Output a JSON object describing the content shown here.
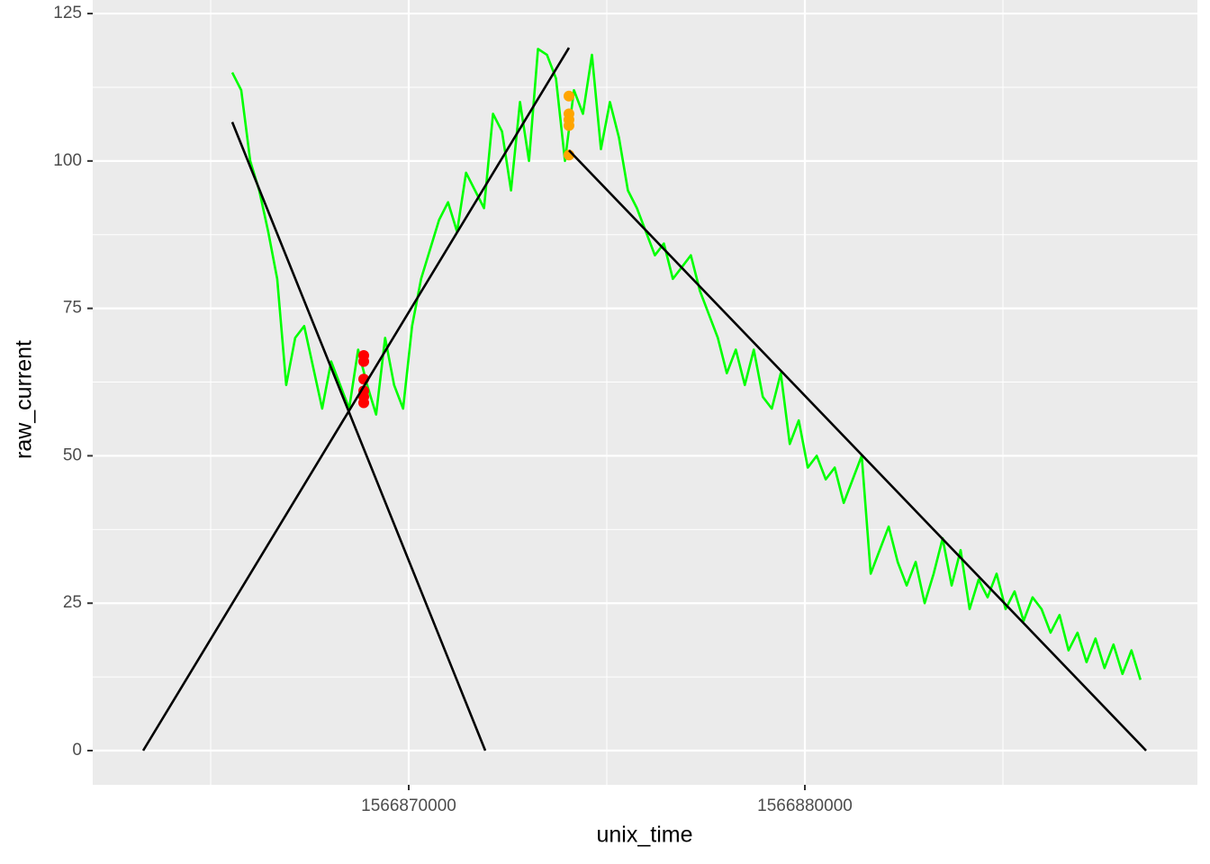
{
  "chart_data": {
    "type": "line",
    "xlabel": "unix_time",
    "ylabel": "raw_current",
    "xlim": [
      1566862023,
      1566889909
    ],
    "ylim": [
      -5.8,
      127.3
    ],
    "xticks": [
      1566870000,
      1566880000
    ],
    "yticks": [
      0,
      25,
      50,
      75,
      100,
      125
    ],
    "grid": true,
    "background": "#ebebeb",
    "layers": [
      {
        "type": "line",
        "color": "#00ff00",
        "x": [
          1566865545,
          1566865772,
          1566865999,
          1566866226,
          1566866453,
          1566866680,
          1566866907,
          1566867134,
          1566867361,
          1566867588,
          1566867815,
          1566868042,
          1566868269,
          1566868496,
          1566868723,
          1566868950,
          1566869177,
          1566869404,
          1566869631,
          1566869858,
          1566870085,
          1566870312,
          1566870539,
          1566870766,
          1566870993,
          1566871220,
          1566871447,
          1566871674,
          1566871901,
          1566872128,
          1566872355,
          1566872582,
          1566872809,
          1566873036,
          1566873263,
          1566873490,
          1566873717,
          1566873944,
          1566874171,
          1566874398,
          1566874625,
          1566874852,
          1566875079,
          1566875306,
          1566875533,
          1566875760,
          1566875987,
          1566876214,
          1566876441,
          1566876668,
          1566876895,
          1566877122,
          1566877349,
          1566877576,
          1566877803,
          1566878030,
          1566878257,
          1566878484,
          1566878711,
          1566878938,
          1566879165,
          1566879392,
          1566879619,
          1566879846,
          1566880073,
          1566880300,
          1566880527,
          1566880754,
          1566880981,
          1566881208,
          1566881435,
          1566881662,
          1566881889,
          1566882116,
          1566882343,
          1566882570,
          1566882797,
          1566883024,
          1566883251,
          1566883478,
          1566883705,
          1566883932,
          1566884159,
          1566884386,
          1566884613,
          1566884840,
          1566885067,
          1566885294,
          1566885521,
          1566885748,
          1566885975,
          1566886202,
          1566886429,
          1566886656,
          1566886883,
          1566887110,
          1566887337,
          1566887564,
          1566887791,
          1566888018,
          1566888245,
          1566888472
        ],
        "values": [
          115,
          112,
          100,
          95,
          88,
          80,
          62,
          70,
          72,
          65,
          58,
          66,
          62,
          58,
          68,
          62,
          57,
          70,
          62,
          58,
          72,
          80,
          85,
          90,
          93,
          88,
          98,
          95,
          92,
          108,
          105,
          95,
          110,
          100,
          119,
          118,
          114,
          100,
          112,
          108,
          118,
          102,
          110,
          104,
          95,
          92,
          88,
          84,
          86,
          80,
          82,
          84,
          78,
          74,
          70,
          64,
          68,
          62,
          68,
          60,
          58,
          64,
          52,
          56,
          48,
          50,
          46,
          48,
          42,
          46,
          50,
          30,
          34,
          38,
          32,
          28,
          32,
          25,
          30,
          36,
          28,
          34,
          24,
          29,
          26,
          30,
          24,
          27,
          22,
          26,
          24,
          20,
          23,
          17,
          20,
          15,
          19,
          14,
          18,
          13,
          17,
          12
        ]
      },
      {
        "type": "scatter",
        "color": "#ff0000",
        "x": [
          1566868864,
          1566868864,
          1566868864,
          1566868864,
          1566868864,
          1566868864
        ],
        "values": [
          67,
          66,
          63,
          61,
          60,
          59
        ]
      },
      {
        "type": "scatter",
        "color": "#ffa500",
        "x": [
          1566874045,
          1566874045,
          1566874045,
          1566874045,
          1566874045
        ],
        "values": [
          111,
          108,
          107,
          106,
          101
        ]
      },
      {
        "type": "line",
        "color": "#000000",
        "x": [
          1566865545,
          1566871932
        ],
        "values": [
          106.6,
          0
        ]
      },
      {
        "type": "line",
        "color": "#000000",
        "x": [
          1566863296,
          1566874045
        ],
        "values": [
          0,
          119.2
        ]
      },
      {
        "type": "line",
        "color": "#000000",
        "x": [
          1566874045,
          1566888614
        ],
        "values": [
          101.8,
          0
        ]
      }
    ]
  }
}
